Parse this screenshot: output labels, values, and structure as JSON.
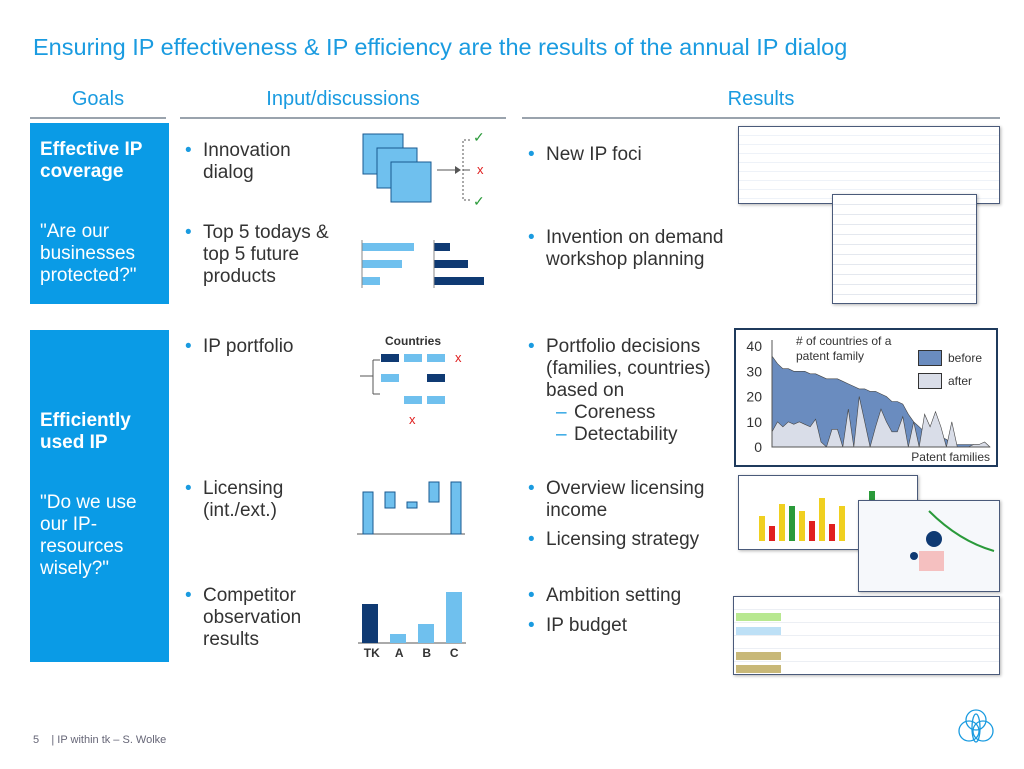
{
  "title": "Ensuring IP effectiveness & IP efficiency are the results of the annual IP dialog",
  "columns": {
    "goals": "Goals",
    "input": "Input/discussions",
    "results": "Results"
  },
  "goals": [
    {
      "heading": "Effective IP coverage",
      "question": "\"Are our businesses protected?\""
    },
    {
      "heading": "Efficiently used IP",
      "question": "\"Do we use our IP-resources wisely?\""
    }
  ],
  "inputs": [
    {
      "label": "Innovation dialog"
    },
    {
      "label": "Top 5 todays & top 5 future products"
    },
    {
      "label": "IP portfolio",
      "diagram_title": "Countries"
    },
    {
      "label": "Licensing (int./ext.)"
    },
    {
      "label": "Competitor observation results",
      "bar_labels": [
        "TK",
        "A",
        "B",
        "C"
      ]
    }
  ],
  "results": [
    {
      "label": "New IP foci"
    },
    {
      "label": "Invention on demand workshop planning"
    },
    {
      "label": "Portfolio decisions (families, countries) based on",
      "subitems": [
        "Coreness",
        "Detectability"
      ]
    },
    {
      "label": "Overview licensing income"
    },
    {
      "label": "Licensing strategy"
    },
    {
      "label": "Ambition setting"
    },
    {
      "label": "IP budget"
    }
  ],
  "chart_data": {
    "type": "area",
    "title": "# of countries of a patent family",
    "xlabel": "Patent families",
    "ylabel": "",
    "ylim": [
      0,
      40
    ],
    "yticks": [
      0,
      10,
      20,
      30,
      40
    ],
    "legend": "right",
    "series": [
      {
        "name": "before",
        "color": "#6a8cbf",
        "values": [
          36,
          33,
          31,
          31,
          30,
          30,
          30,
          29,
          29,
          28,
          27,
          27,
          27,
          26,
          25,
          24,
          23,
          23,
          22,
          22,
          21,
          20,
          18,
          18,
          17,
          13,
          10,
          8,
          6,
          6,
          6,
          4,
          3,
          1,
          1,
          1,
          1,
          1,
          1,
          1,
          0
        ]
      },
      {
        "name": "after",
        "color": "#d9dde8",
        "values": [
          6,
          10,
          8,
          10,
          9,
          10,
          9,
          8,
          11,
          2,
          0,
          7,
          7,
          0,
          15,
          0,
          20,
          10,
          0,
          8,
          15,
          10,
          6,
          6,
          12,
          0,
          10,
          0,
          13,
          8,
          14,
          8,
          0,
          10,
          0,
          0,
          0,
          1,
          1,
          2,
          0
        ]
      }
    ]
  },
  "footer": {
    "page": "5",
    "text": "IP within tk – S. Wolke"
  },
  "colors": {
    "accent": "#1a9be0",
    "goal_box": "#0a9be6",
    "dark_bar": "#0f3a73",
    "light_bar": "#6fc0ee"
  }
}
